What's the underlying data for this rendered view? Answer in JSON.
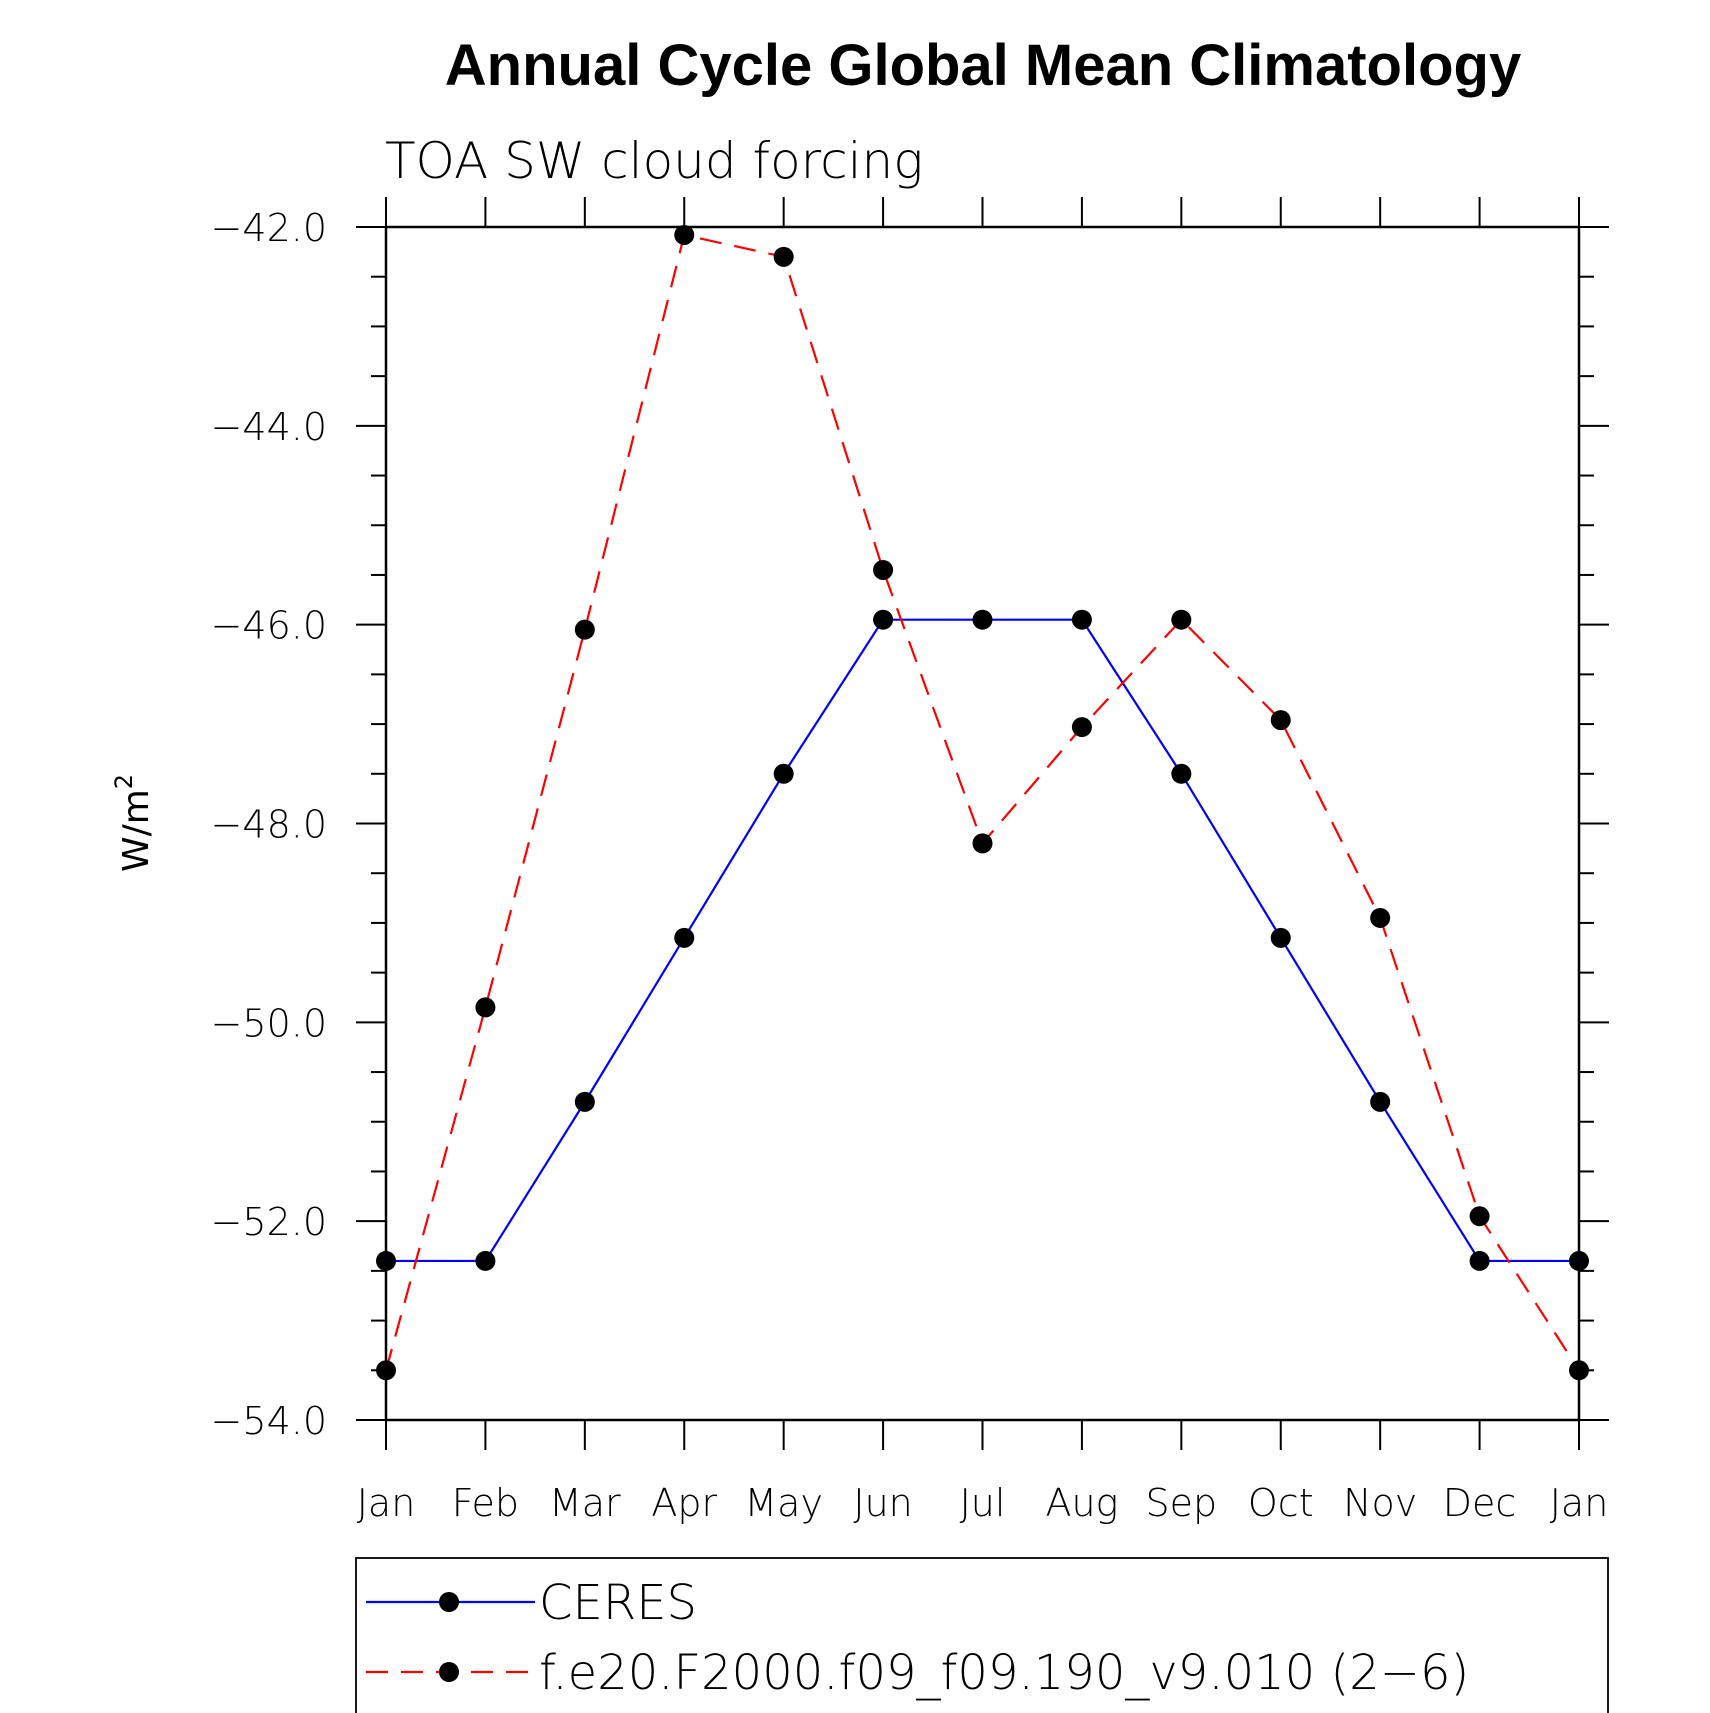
{
  "chart_data": {
    "type": "line",
    "title": "Annual Cycle Global Mean Climatology",
    "subtitle": "TOA SW cloud forcing",
    "ylabel": "W/m",
    "ylabel_superscript": "2",
    "xlabel": "",
    "categories": [
      "Jan",
      "Feb",
      "Mar",
      "Apr",
      "May",
      "Jun",
      "Jul",
      "Aug",
      "Sep",
      "Oct",
      "Nov",
      "Dec",
      "Jan"
    ],
    "ylim": [
      -54.0,
      -42.0
    ],
    "y_ticks": [
      "-42.0",
      "-44.0",
      "-46.0",
      "-48.0",
      "-50.0",
      "-52.0",
      "-54.0"
    ],
    "y_tick_values": [
      -42,
      -44,
      -46,
      -48,
      -50,
      -52,
      -54
    ],
    "grid": false,
    "legend_position": "bottom",
    "series": [
      {
        "name": "CERES",
        "color": "#0000ff",
        "dash": "solid",
        "values": [
          -52.4,
          -52.4,
          -50.8,
          -49.15,
          -47.5,
          -45.95,
          -45.95,
          -45.95,
          -47.5,
          -49.15,
          -50.8,
          -52.4,
          -52.4
        ]
      },
      {
        "name": "f.e20.F2000.f09_f09.190_v9.010 (2−6)",
        "color": "#ff0000",
        "dash": "dashed",
        "values": [
          -53.5,
          -49.85,
          -46.05,
          -42.08,
          -42.3,
          -45.45,
          -48.2,
          -47.03,
          -45.95,
          -46.96,
          -48.95,
          -51.95,
          -53.5
        ]
      }
    ],
    "marker_color": "#000000"
  }
}
